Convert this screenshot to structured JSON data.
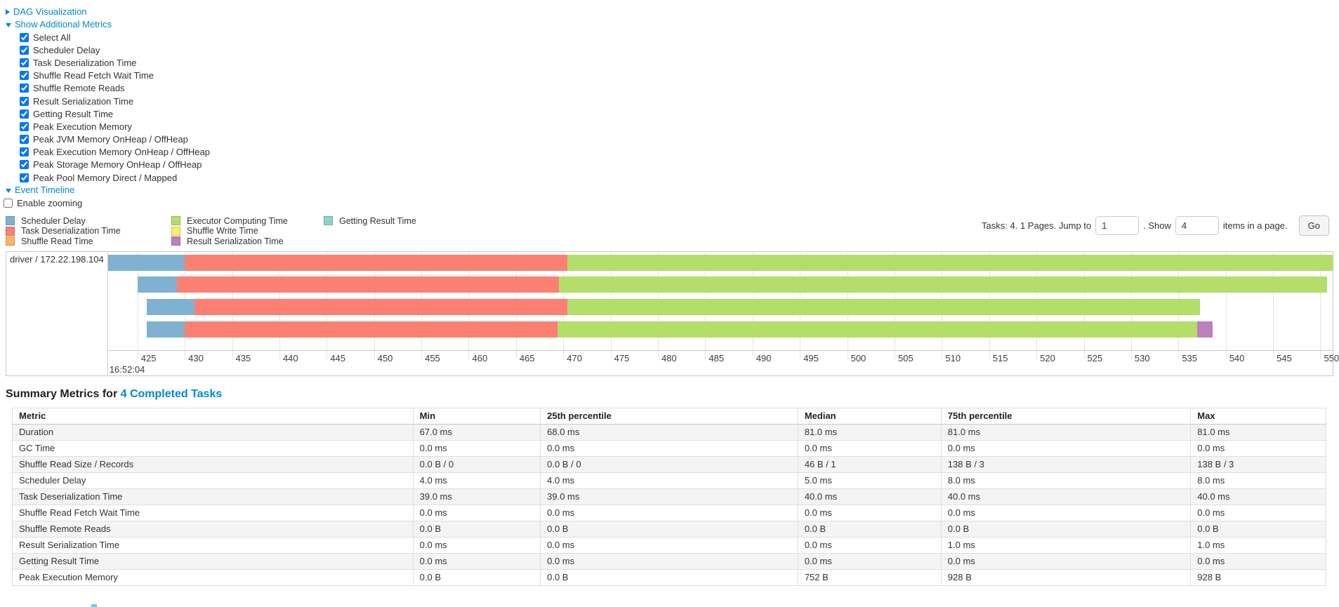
{
  "controls": {
    "dag": {
      "label": "DAG Visualization"
    },
    "metrics": {
      "label": "Show Additional Metrics",
      "checkboxes": [
        {
          "label": "Select All",
          "checked": true
        },
        {
          "label": "Scheduler Delay",
          "checked": true
        },
        {
          "label": "Task Deserialization Time",
          "checked": true
        },
        {
          "label": "Shuffle Read Fetch Wait Time",
          "checked": true
        },
        {
          "label": "Shuffle Remote Reads",
          "checked": true
        },
        {
          "label": "Result Serialization Time",
          "checked": true
        },
        {
          "label": "Getting Result Time",
          "checked": true
        },
        {
          "label": "Peak Execution Memory",
          "checked": true
        },
        {
          "label": "Peak JVM Memory OnHeap / OffHeap",
          "checked": true
        },
        {
          "label": "Peak Execution Memory OnHeap / OffHeap",
          "checked": true
        },
        {
          "label": "Peak Storage Memory OnHeap / OffHeap",
          "checked": true
        },
        {
          "label": "Peak Pool Memory Direct / Mapped",
          "checked": true
        }
      ]
    },
    "event_timeline": {
      "label": "Event Timeline"
    },
    "enable_zooming": {
      "label": "Enable zooming",
      "checked": false
    }
  },
  "legend": {
    "columns": [
      [
        {
          "label": "Scheduler Delay",
          "color": "#80B1D3"
        },
        {
          "label": "Task Deserialization Time",
          "color": "#FB8072"
        },
        {
          "label": "Shuffle Read Time",
          "color": "#FDB462"
        }
      ],
      [
        {
          "label": "Executor Computing Time",
          "color": "#B3DE69"
        },
        {
          "label": "Shuffle Write Time",
          "color": "#FFED6F"
        },
        {
          "label": "Result Serialization Time",
          "color": "#BC80BD"
        }
      ],
      [
        {
          "label": "Getting Result Time",
          "color": "#8DD3C7"
        }
      ]
    ]
  },
  "pagination": {
    "tasks_text": "Tasks: 4. 1 Pages. Jump to",
    "jump_value": "1",
    "show_text": ". Show",
    "show_value": "4",
    "items_text": "items in a page.",
    "go_label": "Go"
  },
  "chart_data": {
    "type": "timeline",
    "group_label": "driver / 172.22.198.104",
    "x_min": 421.9,
    "x_max": 551.3,
    "tick_start": 425,
    "tick_end": 550,
    "tick_step": 5,
    "tick_time_label": "16:52:04",
    "segment_colors": {
      "Scheduler Delay": "#80B1D3",
      "Task Deserialization Time": "#FB8072",
      "Shuffle Read Time": "#FDB462",
      "Executor Computing Time": "#B3DE69",
      "Shuffle Write Time": "#FFED6F",
      "Result Serialization Time": "#BC80BD",
      "Getting Result Time": "#8DD3C7"
    },
    "tasks": [
      {
        "segments": [
          {
            "name": "Scheduler Delay",
            "start": 421.9,
            "end": 430.0
          },
          {
            "name": "Task Deserialization Time",
            "start": 430.0,
            "end": 470.4
          },
          {
            "name": "Executor Computing Time",
            "start": 470.4,
            "end": 553.0
          }
        ]
      },
      {
        "segments": [
          {
            "name": "Scheduler Delay",
            "start": 425.0,
            "end": 429.2
          },
          {
            "name": "Task Deserialization Time",
            "start": 429.2,
            "end": 469.5
          },
          {
            "name": "Executor Computing Time",
            "start": 469.5,
            "end": 550.7
          }
        ]
      },
      {
        "segments": [
          {
            "name": "Scheduler Delay",
            "start": 426.0,
            "end": 431.0
          },
          {
            "name": "Task Deserialization Time",
            "start": 431.0,
            "end": 470.4
          },
          {
            "name": "Executor Computing Time",
            "start": 470.4,
            "end": 537.3
          }
        ]
      },
      {
        "segments": [
          {
            "name": "Scheduler Delay",
            "start": 426.0,
            "end": 430.0
          },
          {
            "name": "Task Deserialization Time",
            "start": 430.0,
            "end": 469.4
          },
          {
            "name": "Executor Computing Time",
            "start": 469.4,
            "end": 537.0
          },
          {
            "name": "Result Serialization Time",
            "start": 537.0,
            "end": 538.6
          }
        ]
      }
    ]
  },
  "summary": {
    "title_prefix": "Summary Metrics for ",
    "title_link": "4 Completed Tasks",
    "table": {
      "headers": [
        "Metric",
        "Min",
        "25th percentile",
        "Median",
        "75th percentile",
        "Max"
      ],
      "rows": [
        {
          "metric": "Duration",
          "values": [
            "67.0 ms",
            "68.0 ms",
            "81.0 ms",
            "81.0 ms",
            "81.0 ms"
          ]
        },
        {
          "metric": "GC Time",
          "values": [
            "0.0 ms",
            "0.0 ms",
            "0.0 ms",
            "0.0 ms",
            "0.0 ms"
          ]
        },
        {
          "metric": "Shuffle Read Size / Records",
          "values": [
            "0.0 B / 0",
            "0.0 B / 0",
            "46 B / 1",
            "138 B / 3",
            "138 B / 3"
          ]
        },
        {
          "metric": "Scheduler Delay",
          "values": [
            "4.0 ms",
            "4.0 ms",
            "5.0 ms",
            "8.0 ms",
            "8.0 ms"
          ]
        },
        {
          "metric": "Task Deserialization Time",
          "values": [
            "39.0 ms",
            "39.0 ms",
            "40.0 ms",
            "40.0 ms",
            "40.0 ms"
          ]
        },
        {
          "metric": "Shuffle Read Fetch Wait Time",
          "values": [
            "0.0 ms",
            "0.0 ms",
            "0.0 ms",
            "0.0 ms",
            "0.0 ms"
          ]
        },
        {
          "metric": "Shuffle Remote Reads",
          "values": [
            "0.0 B",
            "0.0 B",
            "0.0 B",
            "0.0 B",
            "0.0 B"
          ]
        },
        {
          "metric": "Result Serialization Time",
          "values": [
            "0.0 ms",
            "0.0 ms",
            "0.0 ms",
            "1.0 ms",
            "1.0 ms"
          ]
        },
        {
          "metric": "Getting Result Time",
          "values": [
            "0.0 ms",
            "0.0 ms",
            "0.0 ms",
            "0.0 ms",
            "0.0 ms"
          ]
        },
        {
          "metric": "Peak Execution Memory",
          "values": [
            "0.0 B",
            "0.0 B",
            "752 B",
            "928 B",
            "928 B"
          ]
        }
      ]
    }
  },
  "colors": {
    "link": "#0088cc",
    "grid": "#e4e4e4",
    "table_stripe": "#f4f4f4"
  }
}
